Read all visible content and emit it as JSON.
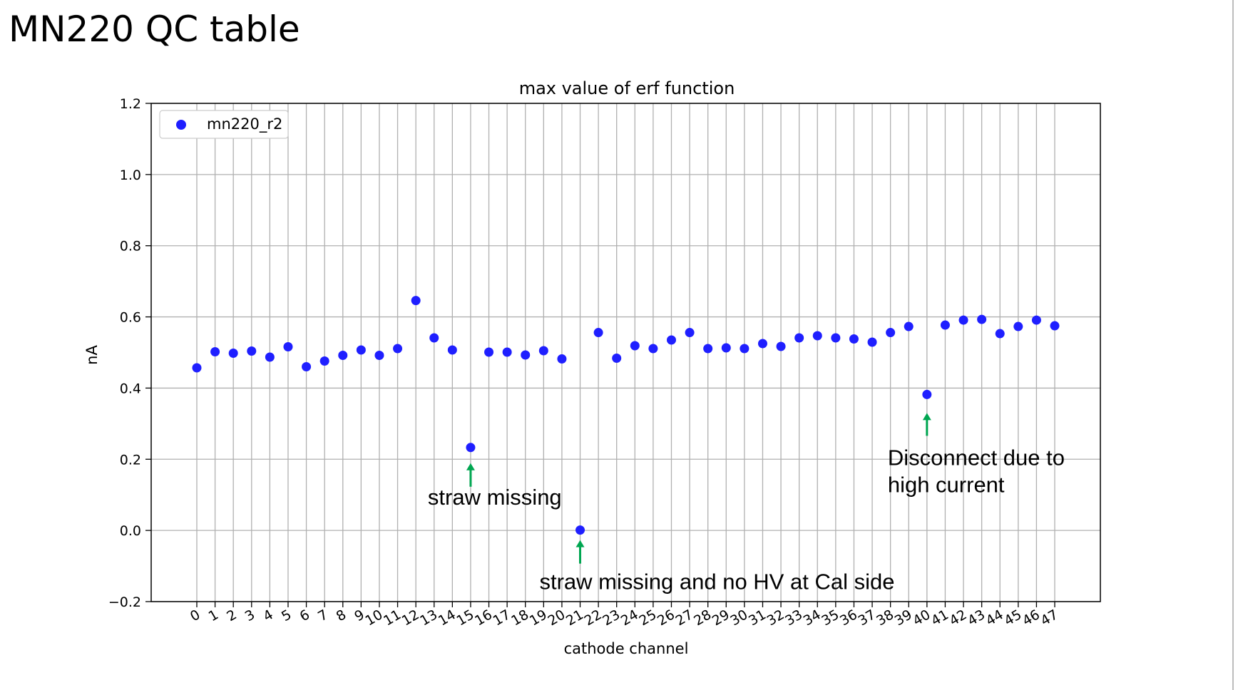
{
  "slide": {
    "title": "MN220 QC table"
  },
  "chart_data": {
    "type": "scatter",
    "title": "max value of erf function",
    "xlabel": "cathode channel",
    "ylabel": "nA",
    "ylim": [
      -0.2,
      1.2
    ],
    "yticks": [
      -0.2,
      0.0,
      0.2,
      0.4,
      0.6,
      0.8,
      1.0,
      1.2
    ],
    "ytick_labels": [
      "−0.2",
      "0.0",
      "0.2",
      "0.4",
      "0.6",
      "0.8",
      "1.0",
      "1.2"
    ],
    "xlim": [
      -2.5,
      49.5
    ],
    "grid": true,
    "legend_position": "top-left",
    "series": [
      {
        "name": "mn220_r2",
        "color": "#1f1fff",
        "x": [
          0,
          1,
          2,
          3,
          4,
          5,
          6,
          7,
          8,
          9,
          10,
          11,
          12,
          13,
          14,
          15,
          16,
          17,
          18,
          19,
          20,
          21,
          22,
          23,
          24,
          25,
          26,
          27,
          28,
          29,
          30,
          31,
          32,
          33,
          34,
          35,
          36,
          37,
          38,
          39,
          40,
          41,
          42,
          43,
          44,
          45,
          46,
          47
        ],
        "y": [
          0.457,
          0.502,
          0.498,
          0.504,
          0.487,
          0.516,
          0.46,
          0.476,
          0.492,
          0.507,
          0.492,
          0.511,
          0.646,
          0.541,
          0.507,
          0.233,
          0.501,
          0.501,
          0.493,
          0.505,
          0.482,
          0.001,
          0.556,
          0.484,
          0.519,
          0.511,
          0.535,
          0.556,
          0.511,
          0.513,
          0.511,
          0.525,
          0.517,
          0.541,
          0.547,
          0.541,
          0.538,
          0.529,
          0.556,
          0.573,
          0.382,
          0.577,
          0.591,
          0.593,
          0.553,
          0.573,
          0.591,
          0.575
        ]
      }
    ],
    "annotations": [
      {
        "lines": [
          "straw missing"
        ],
        "arrow_x": 15,
        "arrow_color": "#00a651"
      },
      {
        "lines": [
          "straw missing and no HV at Cal side"
        ],
        "arrow_x": 21,
        "arrow_color": "#00a651"
      },
      {
        "lines": [
          "Disconnect due to",
          " high current"
        ],
        "arrow_x": 40,
        "arrow_color": "#00a651"
      }
    ]
  }
}
